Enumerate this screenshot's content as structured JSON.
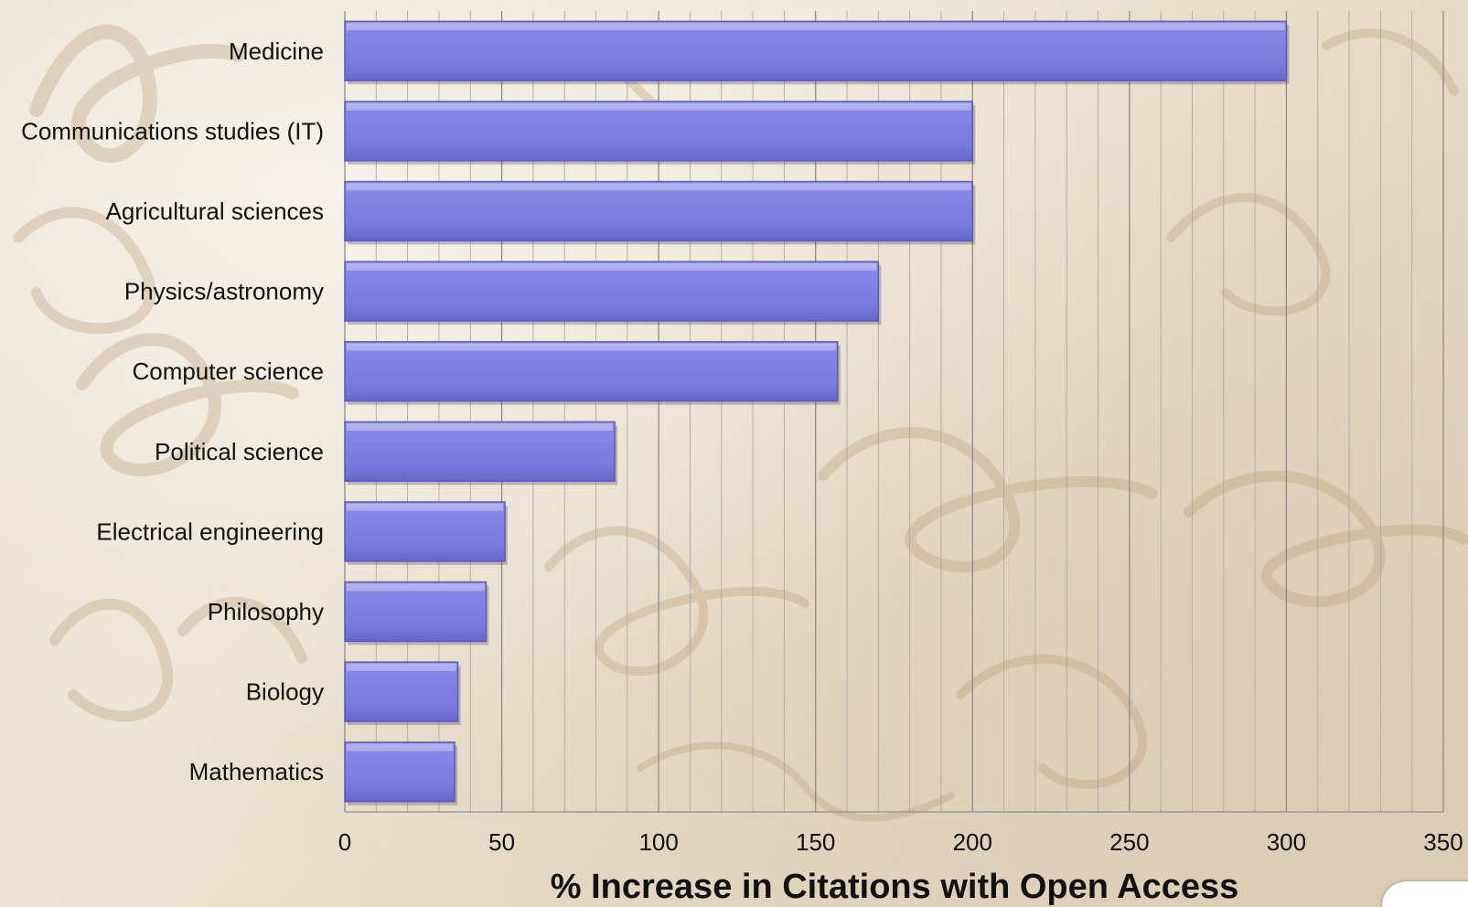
{
  "background": {
    "paper_color": "#e8dfcf",
    "ink_color": "#b89a72"
  },
  "chart_data": {
    "type": "bar",
    "orientation": "horizontal",
    "categories": [
      "Medicine",
      "Communications studies (IT)",
      "Agricultural sciences",
      "Physics/astronomy",
      "Computer science",
      "Political science",
      "Electrical engineering",
      "Philosophy",
      "Biology",
      "Mathematics"
    ],
    "values": [
      300,
      200,
      200,
      170,
      157,
      86,
      51,
      45,
      36,
      35
    ],
    "title": "",
    "xlabel": "% Increase in Citations with Open Access",
    "ylabel": "",
    "xlim": [
      0,
      350
    ],
    "xticks": [
      0,
      50,
      100,
      150,
      200,
      250,
      300,
      350
    ],
    "minor_gridline_step": 10,
    "grid": true,
    "legend": "none",
    "bar_color": "#7b7cdf",
    "bar_edge_color": "#5b5cb8"
  }
}
